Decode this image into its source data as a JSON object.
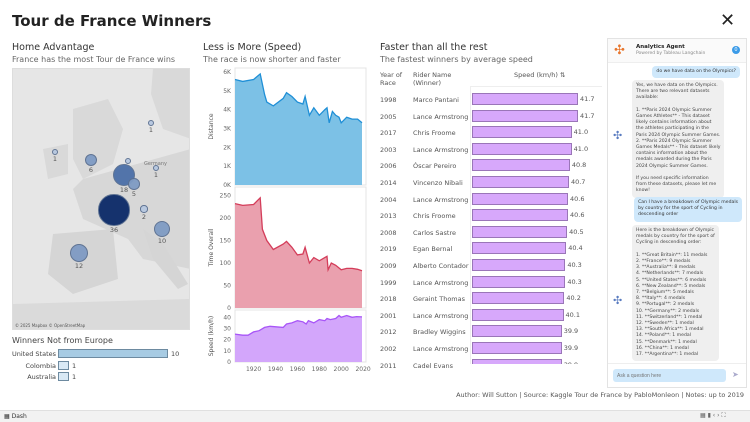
{
  "title": "Tour de France Winners",
  "close_icon": "close-icon",
  "home": {
    "title": "Home Advantage",
    "subtitle": "France has  the most Tour de France wins",
    "map_credit": "© 2025 Mapbox © OpenStreetMap",
    "map_label": "Germany",
    "bubbles": [
      {
        "country": "France",
        "wins": 36
      },
      {
        "country": "Belgium",
        "wins": 18
      },
      {
        "country": "Spain",
        "wins": 12
      },
      {
        "country": "Italy",
        "wins": 10
      },
      {
        "country": "United Kingdom",
        "wins": 6
      },
      {
        "country": "Luxembourg",
        "wins": 5
      },
      {
        "country": "Switzerland",
        "wins": 2
      },
      {
        "country": "Ireland",
        "wins": 1
      },
      {
        "country": "Denmark",
        "wins": 1
      },
      {
        "country": "Germany",
        "wins": 1
      },
      {
        "country": "Netherlands",
        "wins": 1
      }
    ]
  },
  "non_europe": {
    "title": "Winners Not from Europe",
    "rows": [
      {
        "country": "United States",
        "wins": 10
      },
      {
        "country": "Colombia",
        "wins": 1
      },
      {
        "country": "Australia",
        "wins": 1
      }
    ]
  },
  "less": {
    "title": "Less is More (Speed)",
    "subtitle": "The race is now shorter and faster"
  },
  "chart_data": [
    {
      "type": "area",
      "title": "Distance",
      "ylabel": "Distance",
      "yticks": [
        "0K",
        "1K",
        "2K",
        "3K",
        "4K",
        "5K",
        "6K"
      ],
      "ylim": [
        0,
        6000
      ],
      "color": "#1f8fd6",
      "fill": "#7cc1e6",
      "x": [
        1903,
        1910,
        1920,
        1926,
        1930,
        1932,
        1938,
        1947,
        1950,
        1955,
        1960,
        1965,
        1967,
        1971,
        1975,
        1980,
        1985,
        1987,
        1989,
        1992,
        1995,
        1998,
        2000,
        2005,
        2010,
        2015,
        2019
      ],
      "y": [
        5600,
        5500,
        5600,
        5900,
        4800,
        4400,
        4200,
        4600,
        4900,
        4700,
        4400,
        4300,
        4700,
        3700,
        4100,
        3700,
        4000,
        4100,
        3300,
        3900,
        3700,
        3600,
        3300,
        3600,
        3500,
        3500,
        3300
      ]
    },
    {
      "type": "area",
      "title": "Time Overall",
      "ylabel": "Time Overall",
      "yticks": [
        "0",
        "50",
        "100",
        "150",
        "200",
        "250"
      ],
      "ylim": [
        0,
        260
      ],
      "color": "#d43d5a",
      "fill": "#eaa0ae",
      "x": [
        1903,
        1910,
        1920,
        1926,
        1928,
        1932,
        1938,
        1947,
        1950,
        1955,
        1960,
        1965,
        1967,
        1971,
        1975,
        1980,
        1985,
        1987,
        1988,
        1991,
        1995,
        2000,
        2005,
        2010,
        2015,
        2019
      ],
      "y": [
        232,
        228,
        230,
        245,
        175,
        150,
        130,
        142,
        148,
        135,
        118,
        120,
        135,
        100,
        112,
        105,
        112,
        115,
        85,
        100,
        95,
        85,
        88,
        88,
        86,
        83
      ]
    },
    {
      "type": "area",
      "title": "Speed (km/h)",
      "ylabel": "Speed (km/h)",
      "yticks": [
        "0",
        "10",
        "20",
        "30",
        "40"
      ],
      "ylim": [
        0,
        43
      ],
      "color": "#a855f7",
      "fill": "#d3a6fb",
      "x": [
        1903,
        1910,
        1915,
        1920,
        1925,
        1930,
        1935,
        1947,
        1950,
        1955,
        1960,
        1965,
        1968,
        1970,
        1975,
        1980,
        1985,
        1987,
        1990,
        1995,
        1998,
        2000,
        2005,
        2010,
        2014,
        2019
      ],
      "y": [
        25,
        24,
        24,
        27,
        28,
        31,
        32,
        31,
        34,
        35,
        37,
        36,
        34,
        37,
        35,
        38,
        37,
        39,
        38,
        39,
        41.7,
        40,
        41.7,
        40,
        40.7,
        40.4
      ]
    },
    {
      "type": "bar",
      "title": "Faster than all the rest",
      "xlabel": "Speed (km/h)",
      "categories": [
        "1998",
        "2005",
        "2017",
        "2003",
        "2006",
        "2014",
        "2004",
        "2013",
        "2008",
        "2019",
        "2009",
        "1999",
        "2018",
        "2001",
        "2012",
        "2002",
        "2011"
      ],
      "values": [
        41.7,
        41.7,
        41.0,
        41.0,
        40.8,
        40.7,
        40.6,
        40.6,
        40.5,
        40.4,
        40.3,
        40.3,
        40.2,
        40.1,
        39.9,
        39.9,
        39.9
      ]
    }
  ],
  "xticks": [
    "1920",
    "1940",
    "1960",
    "1980",
    "2000",
    "2020"
  ],
  "faster": {
    "title": "Faster than all the rest",
    "subtitle": "The fastest winners by average speed",
    "col_year": "Year of Race",
    "col_rider": "Rider Name (Winner)",
    "col_speed": "Speed (km/h)",
    "rows": [
      {
        "year": "1998",
        "rider": "Marco Pantani",
        "speed": "41.7"
      },
      {
        "year": "2005",
        "rider": "Lance Armstrong",
        "speed": "41.7"
      },
      {
        "year": "2017",
        "rider": "Chris Froome",
        "speed": "41.0"
      },
      {
        "year": "2003",
        "rider": "Lance Armstrong",
        "speed": "41.0"
      },
      {
        "year": "2006",
        "rider": "Óscar Pereiro",
        "speed": "40.8"
      },
      {
        "year": "2014",
        "rider": "Vincenzo Nibali",
        "speed": "40.7"
      },
      {
        "year": "2004",
        "rider": "Lance Armstrong",
        "speed": "40.6"
      },
      {
        "year": "2013",
        "rider": "Chris Froome",
        "speed": "40.6"
      },
      {
        "year": "2008",
        "rider": "Carlos Sastre",
        "speed": "40.5"
      },
      {
        "year": "2019",
        "rider": "Egan Bernal",
        "speed": "40.4"
      },
      {
        "year": "2009",
        "rider": "Alberto Contador",
        "speed": "40.3"
      },
      {
        "year": "1999",
        "rider": "Lance Armstrong",
        "speed": "40.3"
      },
      {
        "year": "2018",
        "rider": "Geraint Thomas",
        "speed": "40.2"
      },
      {
        "year": "2001",
        "rider": "Lance Armstrong",
        "speed": "40.1"
      },
      {
        "year": "2012",
        "rider": "Bradley Wiggins",
        "speed": "39.9"
      },
      {
        "year": "2002",
        "rider": "Lance Armstrong",
        "speed": "39.9"
      },
      {
        "year": "2011",
        "rider": "Cadel Evans",
        "speed": "39.9"
      }
    ]
  },
  "chat": {
    "title": "Analytics Agent",
    "powered": "Powered by Tableau Langchain",
    "badge": "0",
    "messages": [
      {
        "role": "user",
        "text": "do we have data on the Olympics?"
      },
      {
        "role": "bot",
        "text": "Yes, we have data on the Olympics.\nThere are two relevant datasets\navailable:\n\n1. **Paris 2024 Olympic Summer\nGames Athletes** - This dataset\nlikely contains information about\nthe athletes participating in the\nParis 2024 Olympic Summer Games.\n2. **Paris 2024 Olympic Summer\nGames Medals** - This dataset likely\ncontains information about the\nmedals awarded during the Paris\n2024 Olympic Summer Games.\n\nIf you need specific information\nfrom these datasets, please let me\nknow!"
      },
      {
        "role": "user",
        "text": "Can I have a breakdown of Olympic medals\nby country for the sport of Cycling in\ndescending order"
      },
      {
        "role": "bot",
        "text": "Here is the breakdown of Olympic\nmedals by country for the sport of\nCycling in descending order:\n\n1. **Great Britain**: 11 medals\n2. **France**: 9 medals\n3. **Australia**: 8 medals\n4. **Netherlands**: 7 medals\n5. **United States**: 6 medals\n6. **New Zealand**: 5 medals\n7. **Belgium**: 5 medals\n8. **Italy**: 4 medals\n9. **Portugal**: 2 medals\n10. **Germany**: 2 medals\n11. **Switzerland**: 1 medal\n12. **Sweden**: 1 medal\n13. **South Africa**: 1 medal\n14. **Poland**: 1 medal\n15. **Denmark**: 1 medal\n16. **China**: 1 medal\n17. **Argentina**: 1 medal\n\nThis data was sourced from the"
      }
    ],
    "placeholder": "Ask a question here"
  },
  "footer": "Author: Will Sutton | Source: Kaggle Tour de France by PabloMonleon | Notes: up to 2019",
  "bottom": {
    "tab": "Dash"
  }
}
